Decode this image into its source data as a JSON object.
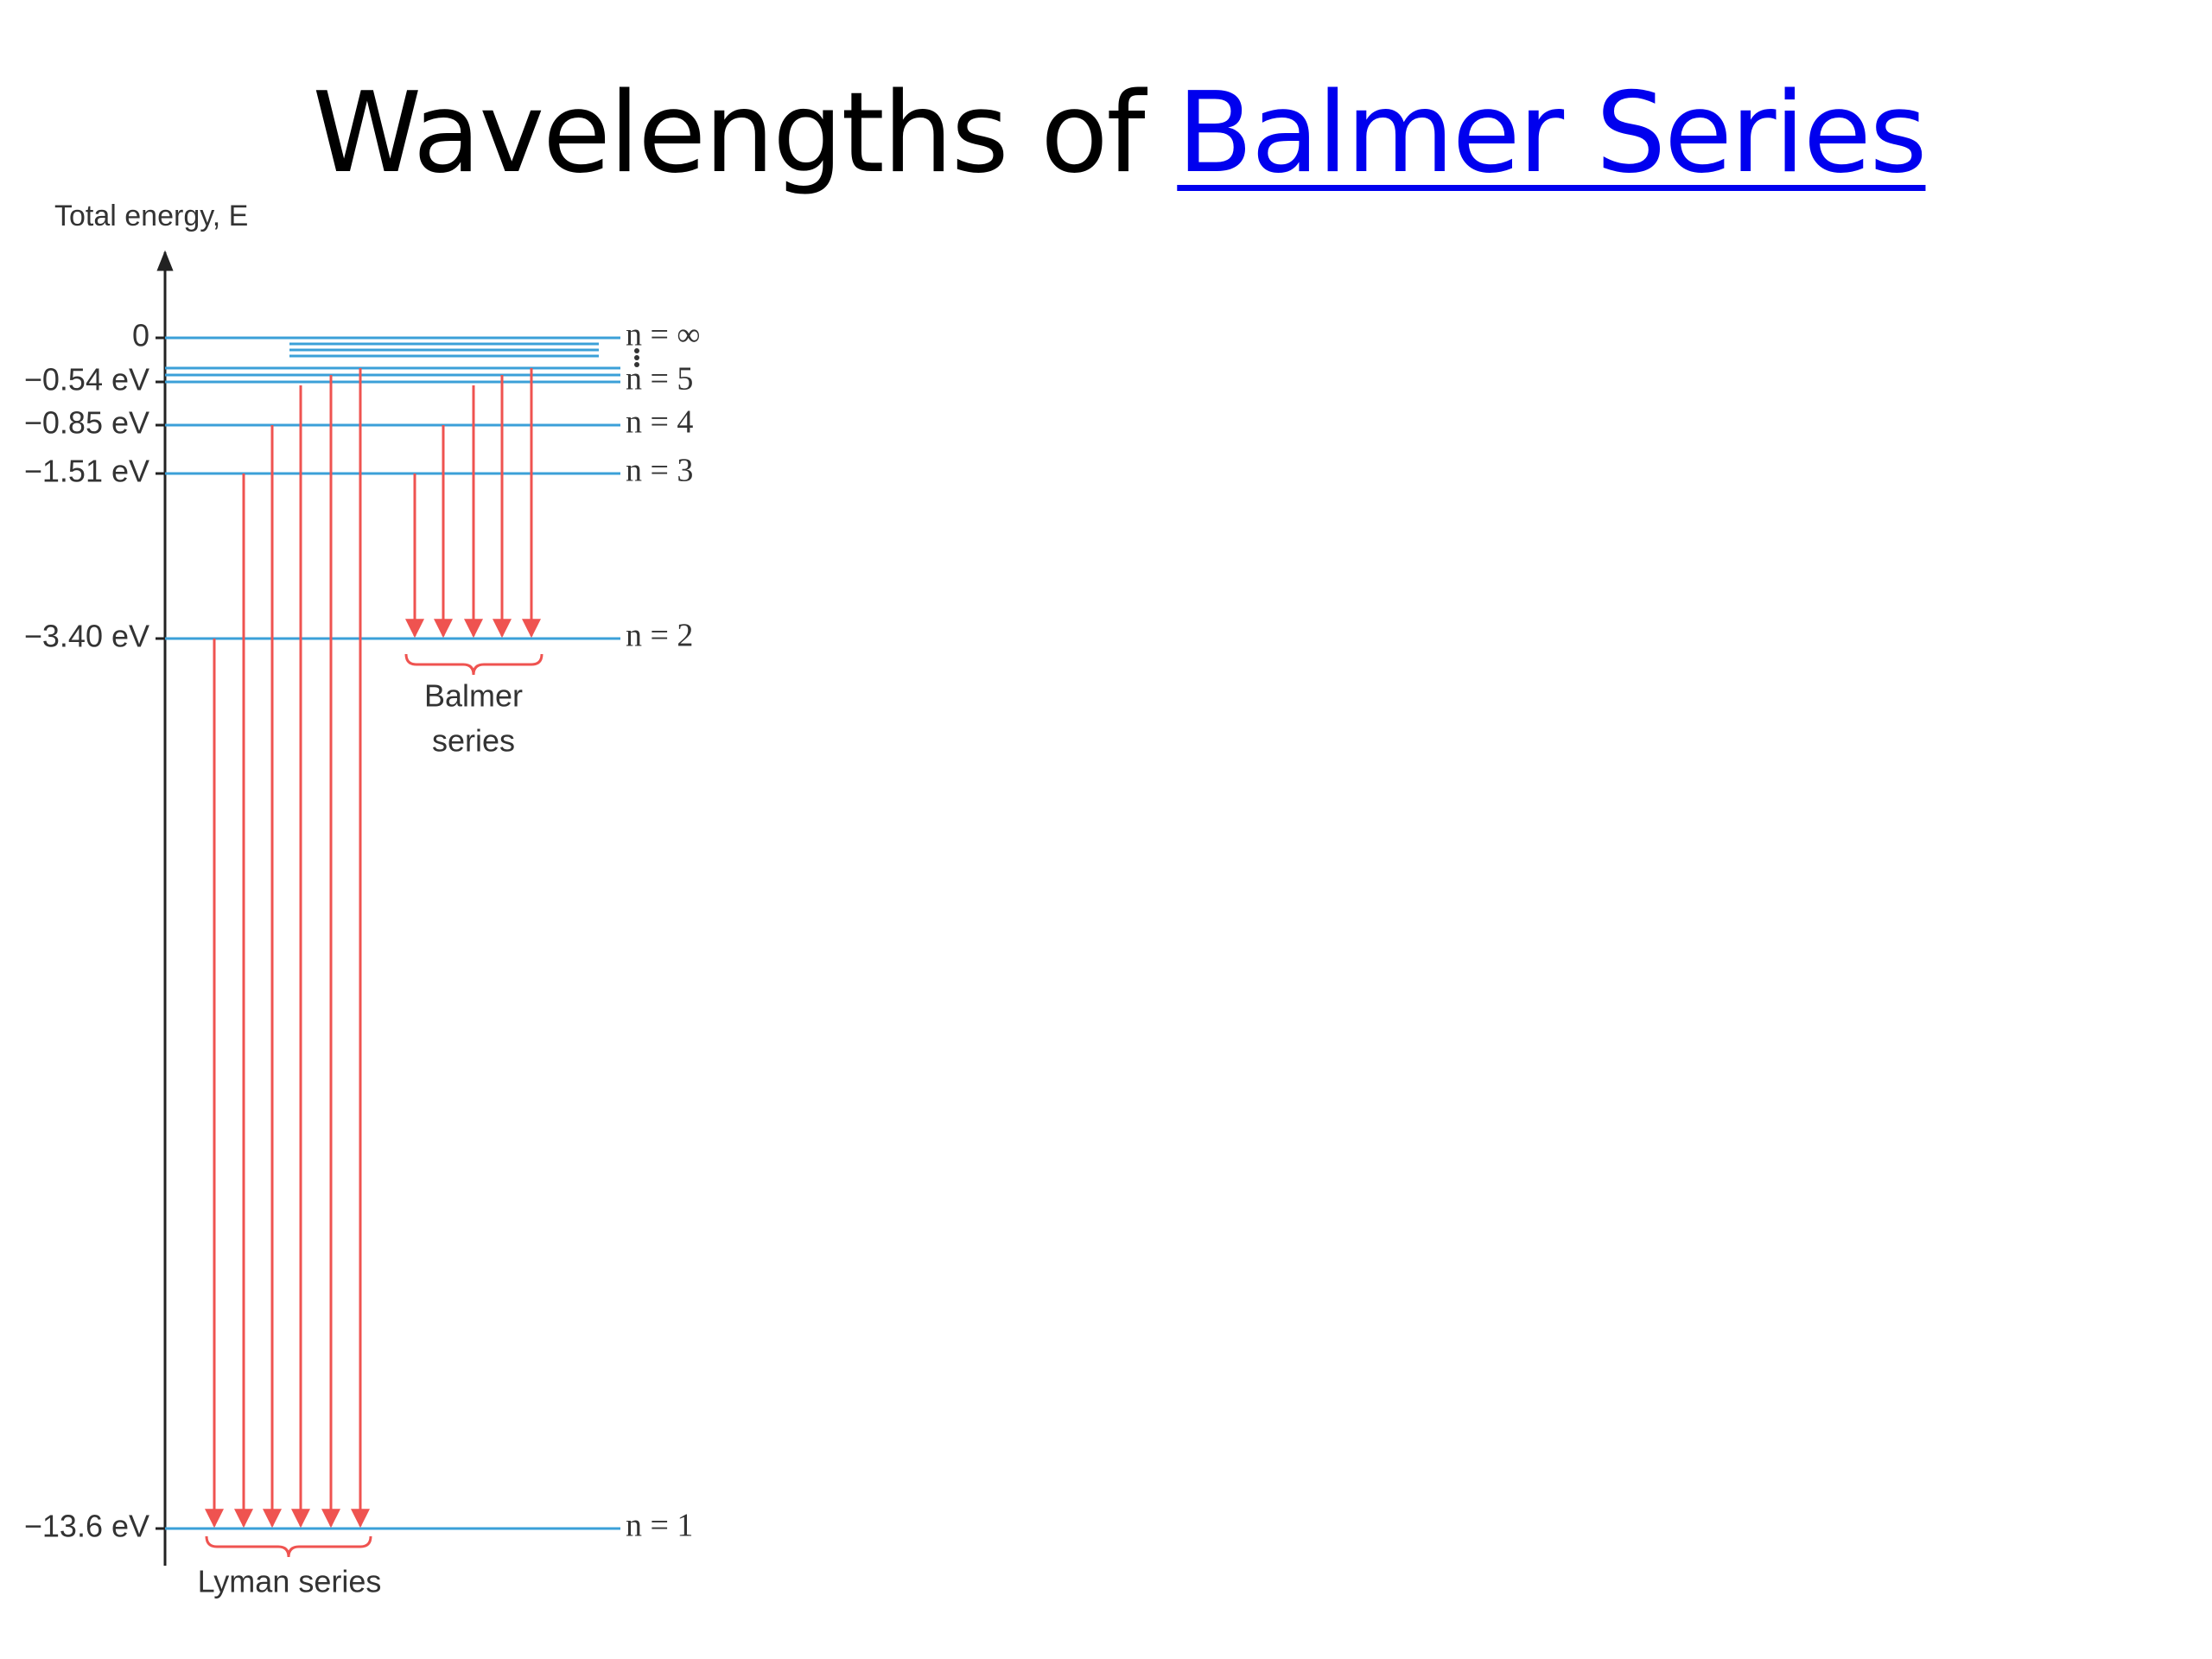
{
  "title": {
    "text": "Wavelengths of",
    "link": "Balmer Series"
  },
  "diagram": {
    "axis_label": "Total energy, E",
    "levels": [
      {
        "energy": "0",
        "n": "n = ∞"
      },
      {
        "energy": "−0.54 eV",
        "n": "n = 5"
      },
      {
        "energy": "−0.85 eV",
        "n": "n = 4"
      },
      {
        "energy": "−1.51 eV",
        "n": "n = 3"
      },
      {
        "energy": "−3.40 eV",
        "n": "n = 2"
      },
      {
        "energy": "−13.6 eV",
        "n": "n = 1"
      }
    ],
    "balmer_label": [
      "Balmer",
      "series"
    ],
    "lyman_label": "Lyman series"
  }
}
